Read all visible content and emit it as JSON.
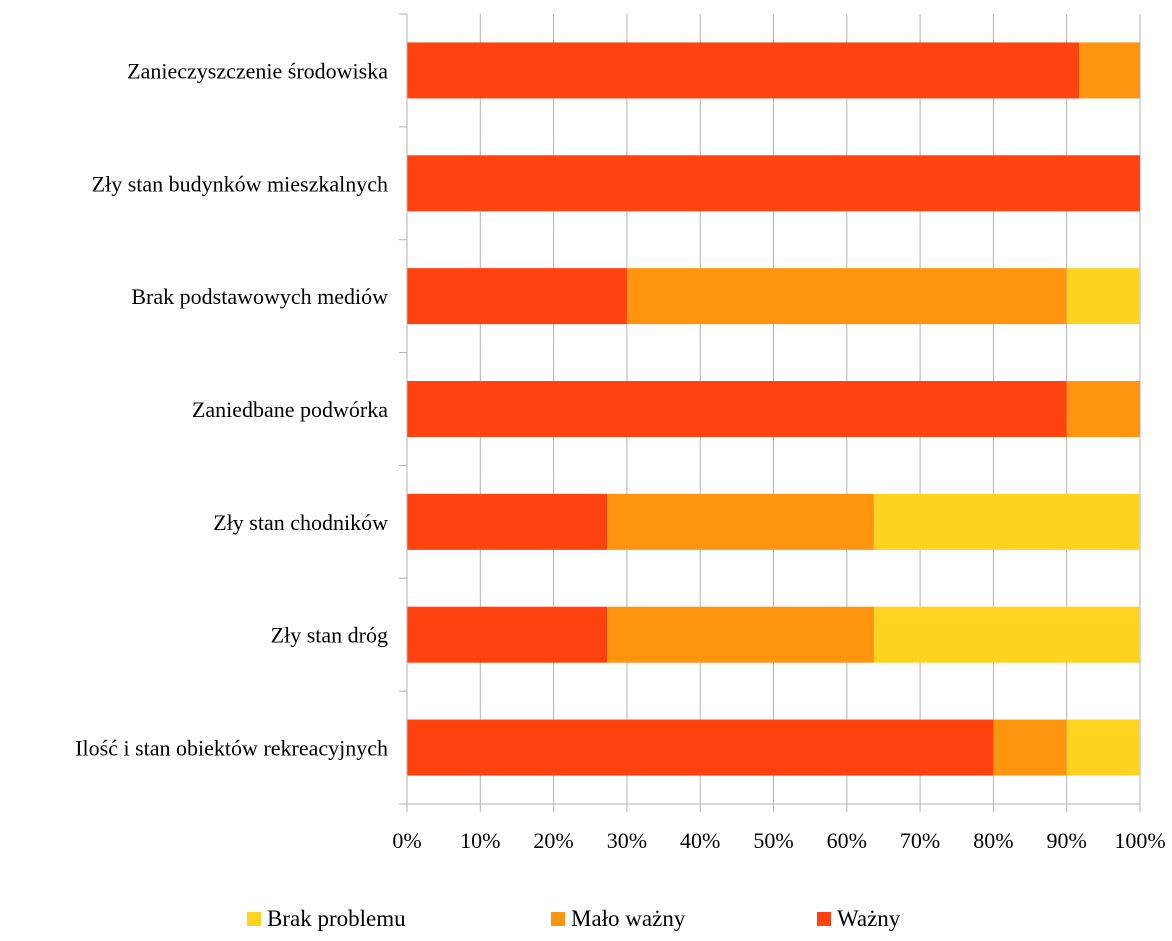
{
  "chart_data": {
    "type": "bar",
    "orientation": "horizontal",
    "stacked": "percent",
    "categories": [
      "Zanieczyszczenie środowiska",
      "Zły stan budynków mieszkalnych",
      "Brak podstawowych mediów",
      "Zaniedbane podwórka",
      "Zły stan chodników",
      "Zły stan dróg",
      "Ilość i stan obiektów rekreacyjnych"
    ],
    "series": [
      {
        "name": "Ważny",
        "color": "#ff420e",
        "values": [
          91.7,
          100,
          30,
          90,
          27.3,
          27.3,
          80
        ]
      },
      {
        "name": "Mało ważny",
        "color": "#ff950e",
        "values": [
          8.3,
          0,
          60,
          10,
          36.4,
          36.4,
          10
        ]
      },
      {
        "name": "Brak problemu",
        "color": "#ffd320",
        "values": [
          0,
          0,
          10,
          0,
          36.3,
          36.3,
          10
        ]
      }
    ],
    "xlim": [
      0,
      100
    ],
    "x_ticks": [
      "0%",
      "10%",
      "20%",
      "30%",
      "40%",
      "50%",
      "60%",
      "70%",
      "80%",
      "90%",
      "100%"
    ],
    "grid": true,
    "legend_position": "bottom",
    "legend_order": [
      "Brak problemu",
      "Mało ważny",
      "Ważny"
    ],
    "title": "",
    "xlabel": "",
    "ylabel": ""
  }
}
